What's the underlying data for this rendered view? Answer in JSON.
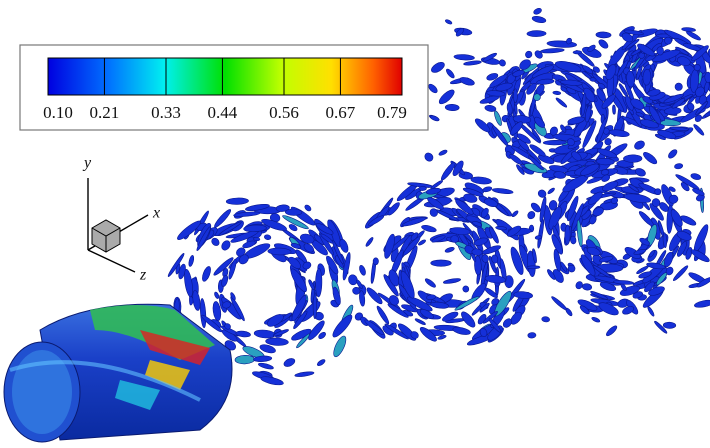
{
  "colorbar": {
    "range": [
      0.1,
      0.79
    ],
    "ticks": [
      {
        "value": 0.1,
        "label": "0.10"
      },
      {
        "value": 0.21,
        "label": "0.21"
      },
      {
        "value": 0.33,
        "label": "0.33"
      },
      {
        "value": 0.44,
        "label": "0.44"
      },
      {
        "value": 0.56,
        "label": "0.56"
      },
      {
        "value": 0.67,
        "label": "0.67"
      },
      {
        "value": 0.79,
        "label": "0.79"
      }
    ]
  },
  "axes_triad": {
    "x": "x",
    "y": "y",
    "z": "z"
  }
}
